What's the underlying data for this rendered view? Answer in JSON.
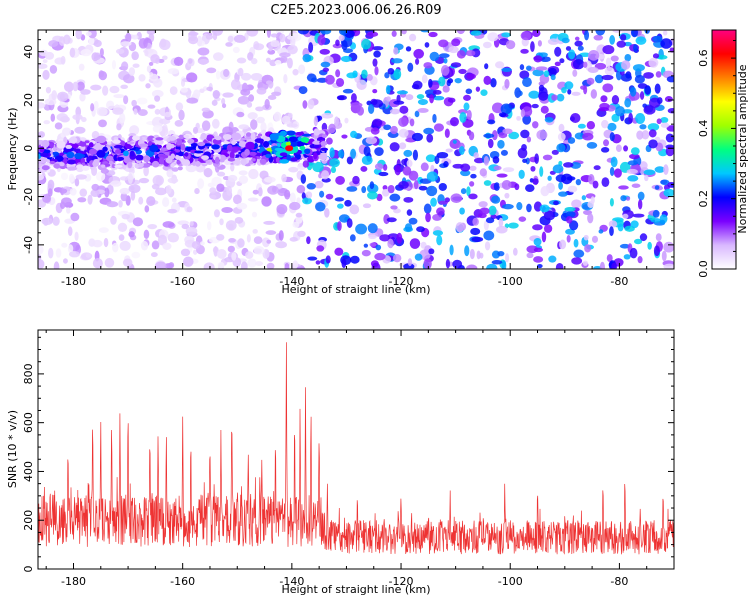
{
  "figure": {
    "title": "C2E5.2023.006.06.26.R09"
  },
  "chart_data": [
    {
      "type": "heatmap",
      "title": "C2E5.2023.006.06.26.R09",
      "xlabel": "Height of straight line (km)",
      "ylabel": "Frequency (Hz)",
      "xlim": [
        -186.5,
        -70
      ],
      "ylim": [
        -50,
        49
      ],
      "xticks": [
        -180,
        -160,
        -140,
        -120,
        -100,
        -80
      ],
      "yticks": [
        -40,
        -20,
        0,
        20,
        40
      ],
      "grid": false,
      "colorbar": {
        "label": "Normalized spectral amplitude",
        "range": [
          0,
          0.68
        ],
        "ticks": [
          0.0,
          0.2,
          0.4,
          0.6
        ],
        "tick_labels": [
          "0.0",
          "0.2",
          "0.4",
          "0.6"
        ],
        "colormap": [
          "#ffffff",
          "#d9b8ff",
          "#7a00ff",
          "#0000ff",
          "#00c8ff",
          "#00ff80",
          "#a0ff00",
          "#ffff00",
          "#ff8000",
          "#ff0000",
          "#ff0080"
        ]
      },
      "features": {
        "signal_band": {
          "x_range": [
            -186.5,
            -134
          ],
          "freq_center": -3,
          "freq_halfwidth": 6,
          "peak_x": -140.5,
          "peak_freq": 0,
          "peak_value": 0.62
        },
        "noise_level_left": 0.05,
        "noise_level_right": 0.16,
        "noise_transition_x": -138
      }
    },
    {
      "type": "line",
      "xlabel": "Height of straight line (km)",
      "ylabel": "SNR (10 * v/v)",
      "xlim": [
        -186.5,
        -70
      ],
      "ylim": [
        0,
        980
      ],
      "xticks": [
        -180,
        -160,
        -140,
        -120,
        -100,
        -80
      ],
      "yticks": [
        0,
        200,
        400,
        600,
        800
      ],
      "grid": false,
      "color": "#ee3333",
      "baseline_segments": [
        {
          "x": [
            -186.5,
            -134
          ],
          "typical": 200,
          "spread": 110
        },
        {
          "x": [
            -134,
            -70
          ],
          "typical": 130,
          "spread": 70
        }
      ],
      "peaks": [
        {
          "x": -181,
          "y": 540
        },
        {
          "x": -176.5,
          "y": 650
        },
        {
          "x": -175,
          "y": 620
        },
        {
          "x": -173,
          "y": 670
        },
        {
          "x": -171.5,
          "y": 640
        },
        {
          "x": -170,
          "y": 690
        },
        {
          "x": -166,
          "y": 600
        },
        {
          "x": -164.5,
          "y": 585
        },
        {
          "x": -163,
          "y": 600
        },
        {
          "x": -160,
          "y": 640
        },
        {
          "x": -158.5,
          "y": 575
        },
        {
          "x": -155,
          "y": 560
        },
        {
          "x": -153,
          "y": 590
        },
        {
          "x": -151,
          "y": 720
        },
        {
          "x": -148,
          "y": 530
        },
        {
          "x": -145.5,
          "y": 460
        },
        {
          "x": -143,
          "y": 560
        },
        {
          "x": -141,
          "y": 975
        },
        {
          "x": -139.5,
          "y": 660
        },
        {
          "x": -138.5,
          "y": 725
        },
        {
          "x": -137.5,
          "y": 760
        },
        {
          "x": -136.5,
          "y": 700
        },
        {
          "x": -135,
          "y": 580
        },
        {
          "x": -133.5,
          "y": 360
        },
        {
          "x": -128,
          "y": 330
        },
        {
          "x": -120,
          "y": 320
        },
        {
          "x": -111,
          "y": 330
        },
        {
          "x": -101,
          "y": 380
        },
        {
          "x": -95,
          "y": 340
        },
        {
          "x": -83,
          "y": 410
        },
        {
          "x": -79,
          "y": 430
        },
        {
          "x": -72,
          "y": 330
        }
      ]
    }
  ]
}
